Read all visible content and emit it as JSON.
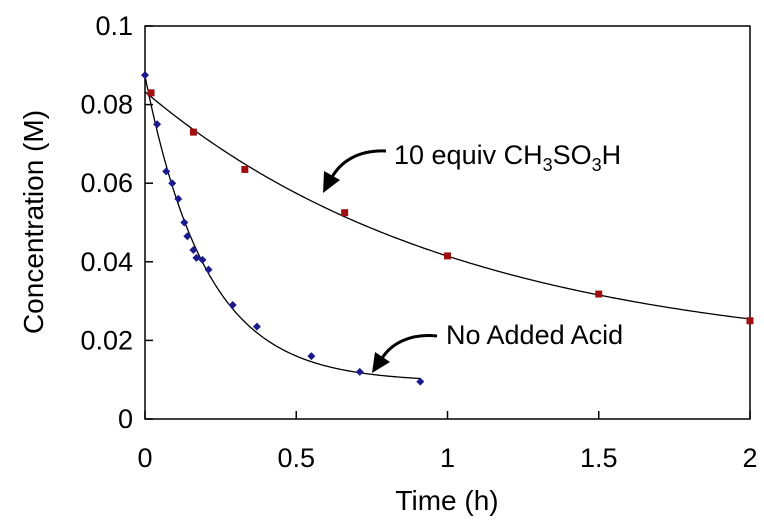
{
  "chart_data": {
    "type": "scatter",
    "title": "",
    "xlabel": "Time (h)",
    "ylabel": "Concentration (M)",
    "xlim": [
      0,
      2
    ],
    "ylim": [
      0,
      0.1
    ],
    "xticks": [
      "0",
      "0.5",
      "1",
      "1.5",
      "2"
    ],
    "yticks": [
      "0",
      "0.02",
      "0.04",
      "0.06",
      "0.08",
      "0.1"
    ],
    "grid": false,
    "legend": "none",
    "series": [
      {
        "annotation": "10 equiv CH3SO3H",
        "annotation_parts": [
          "10 equiv CH",
          "3",
          "SO",
          "3",
          "H"
        ],
        "color": "#a01010",
        "marker": "square",
        "x": [
          0.02,
          0.16,
          0.33,
          0.66,
          1.0,
          1.5,
          2.0
        ],
        "y": [
          0.083,
          0.073,
          0.0635,
          0.0525,
          0.0415,
          0.0318,
          0.025
        ],
        "fit": "exponential"
      },
      {
        "annotation": "No Added Acid",
        "color": "#1a1a8c",
        "marker": "diamond",
        "x": [
          0.0,
          0.04,
          0.07,
          0.09,
          0.11,
          0.13,
          0.14,
          0.16,
          0.17,
          0.19,
          0.21,
          0.29,
          0.37,
          0.55,
          0.71,
          0.91
        ],
        "y": [
          0.0875,
          0.075,
          0.063,
          0.06,
          0.056,
          0.05,
          0.0465,
          0.043,
          0.041,
          0.0405,
          0.038,
          0.029,
          0.0235,
          0.016,
          0.012,
          0.0095
        ],
        "fit": "exponential"
      }
    ]
  }
}
